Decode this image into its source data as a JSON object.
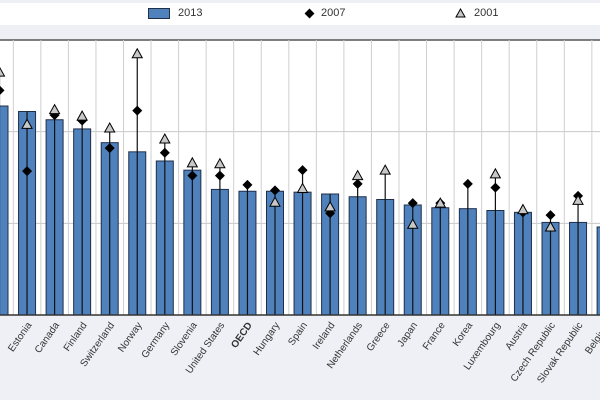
{
  "legend": {
    "items": [
      {
        "label": "2013",
        "marker": "bar"
      },
      {
        "label": "2007",
        "marker": "diamond"
      },
      {
        "label": "2001",
        "marker": "triangle"
      }
    ]
  },
  "chart_data": {
    "type": "bar",
    "title": "",
    "xlabel": "",
    "ylabel": "",
    "ylim": [
      0,
      3
    ],
    "grid": true,
    "legend_position": "top",
    "colors": {
      "bar": "#4f81bd",
      "bar_edge": "#1f2f4a",
      "diamond": "#000000",
      "triangle": "#c8c8c8"
    },
    "highlight_category": "OECD",
    "categories": [
      "",
      "Estonia",
      "Canada",
      "Finland",
      "Switzerland",
      "Norway",
      "Germany",
      "Slovenia",
      "United States",
      "OECD",
      "Hungary",
      "Spain",
      "Ireland",
      "Netherlands",
      "Greece",
      "Japan",
      "France",
      "Korea",
      "Luxembourg",
      "Austria",
      "Czech Republic",
      "Slovak Republic",
      "Belgium"
    ],
    "series": [
      {
        "name": "2013",
        "kind": "bar",
        "values": [
          2.28,
          2.22,
          2.13,
          2.03,
          1.88,
          1.78,
          1.68,
          1.58,
          1.37,
          1.35,
          1.35,
          1.34,
          1.32,
          1.29,
          1.26,
          1.2,
          1.17,
          1.16,
          1.14,
          1.12,
          1.01,
          1.01,
          0.96
        ]
      },
      {
        "name": "2007",
        "kind": "diamond",
        "values": [
          2.45,
          1.57,
          2.18,
          2.12,
          1.82,
          2.23,
          1.77,
          1.52,
          1.52,
          1.42,
          1.36,
          1.58,
          1.11,
          1.43,
          null,
          1.22,
          1.22,
          1.43,
          1.39,
          1.12,
          1.09,
          1.3,
          null
        ]
      },
      {
        "name": "2001",
        "kind": "triangle",
        "values": [
          2.65,
          2.08,
          2.24,
          2.17,
          2.04,
          2.85,
          1.92,
          1.66,
          1.65,
          null,
          1.23,
          1.38,
          1.18,
          1.52,
          1.58,
          0.99,
          1.22,
          null,
          1.54,
          1.15,
          0.96,
          1.25,
          null
        ]
      }
    ]
  }
}
